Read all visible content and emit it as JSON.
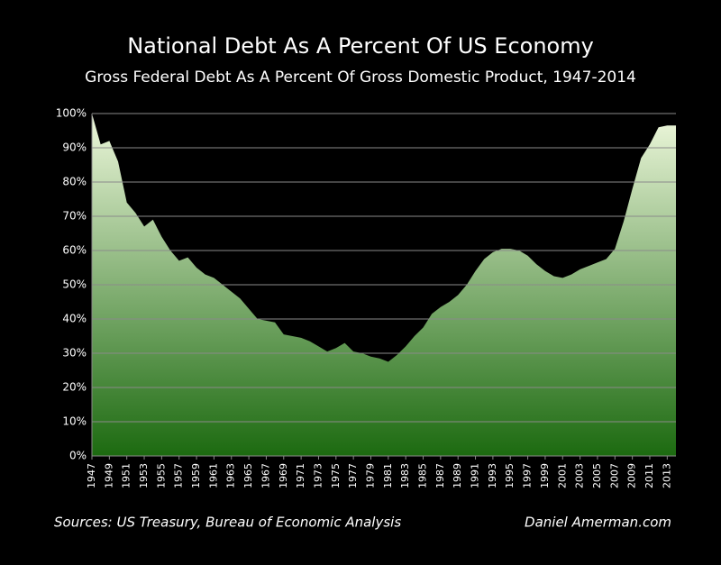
{
  "chart_data": {
    "type": "area",
    "title": "National Debt As A Percent Of US Economy",
    "subtitle": "Gross Federal Debt As A Percent Of Gross Domestic Product, 1947-2014",
    "source": "Sources:  US Treasury, Bureau of Economic Analysis",
    "credit": "Daniel Amerman.com",
    "x": [
      1947,
      1948,
      1949,
      1950,
      1951,
      1952,
      1953,
      1954,
      1955,
      1956,
      1957,
      1958,
      1959,
      1960,
      1961,
      1962,
      1963,
      1964,
      1965,
      1966,
      1967,
      1968,
      1969,
      1970,
      1971,
      1972,
      1973,
      1974,
      1975,
      1976,
      1977,
      1978,
      1979,
      1980,
      1981,
      1982,
      1983,
      1984,
      1985,
      1986,
      1987,
      1988,
      1989,
      1990,
      1991,
      1992,
      1993,
      1994,
      1995,
      1996,
      1997,
      1998,
      1999,
      2000,
      2001,
      2002,
      2003,
      2004,
      2005,
      2006,
      2007,
      2008,
      2009,
      2010,
      2011,
      2012,
      2013,
      2014
    ],
    "values": [
      100,
      91,
      92,
      86,
      74,
      71,
      67,
      69,
      64,
      60,
      57,
      58,
      55,
      53,
      52,
      50,
      48,
      46,
      43,
      40,
      39.5,
      39,
      35.5,
      35,
      34.5,
      33.5,
      32,
      30.5,
      31.5,
      33,
      30.5,
      30,
      29,
      28.5,
      27.5,
      29.5,
      32,
      35,
      37.5,
      41.5,
      43.5,
      45,
      47,
      50,
      54,
      57.5,
      59.5,
      60.5,
      60.5,
      60,
      58.5,
      56,
      54,
      52.5,
      52,
      53,
      54.5,
      55.5,
      56.5,
      57.5,
      60.5,
      68.5,
      78,
      87,
      91,
      96,
      96.5,
      96.5
    ],
    "xlim": [
      1947,
      2014
    ],
    "xticks": [
      1947,
      1949,
      1951,
      1953,
      1955,
      1957,
      1959,
      1961,
      1963,
      1965,
      1967,
      1969,
      1971,
      1973,
      1975,
      1977,
      1979,
      1981,
      1983,
      1985,
      1987,
      1989,
      1991,
      1993,
      1995,
      1997,
      1999,
      2001,
      2003,
      2005,
      2007,
      2009,
      2011,
      2013
    ],
    "ylim": [
      0,
      100
    ],
    "yticks": [
      {
        "value": 0,
        "label": "0%"
      },
      {
        "value": 10,
        "label": "10%"
      },
      {
        "value": 20,
        "label": "20%"
      },
      {
        "value": 30,
        "label": "30%"
      },
      {
        "value": 40,
        "label": "40%"
      },
      {
        "value": 50,
        "label": "50%"
      },
      {
        "value": 60,
        "label": "60%"
      },
      {
        "value": 70,
        "label": "70%"
      },
      {
        "value": 80,
        "label": "80%"
      },
      {
        "value": 90,
        "label": "90%"
      },
      {
        "value": 100,
        "label": "100%"
      }
    ],
    "grid": true,
    "gradient": [
      "#eef8dc",
      "#1c6a10"
    ]
  }
}
